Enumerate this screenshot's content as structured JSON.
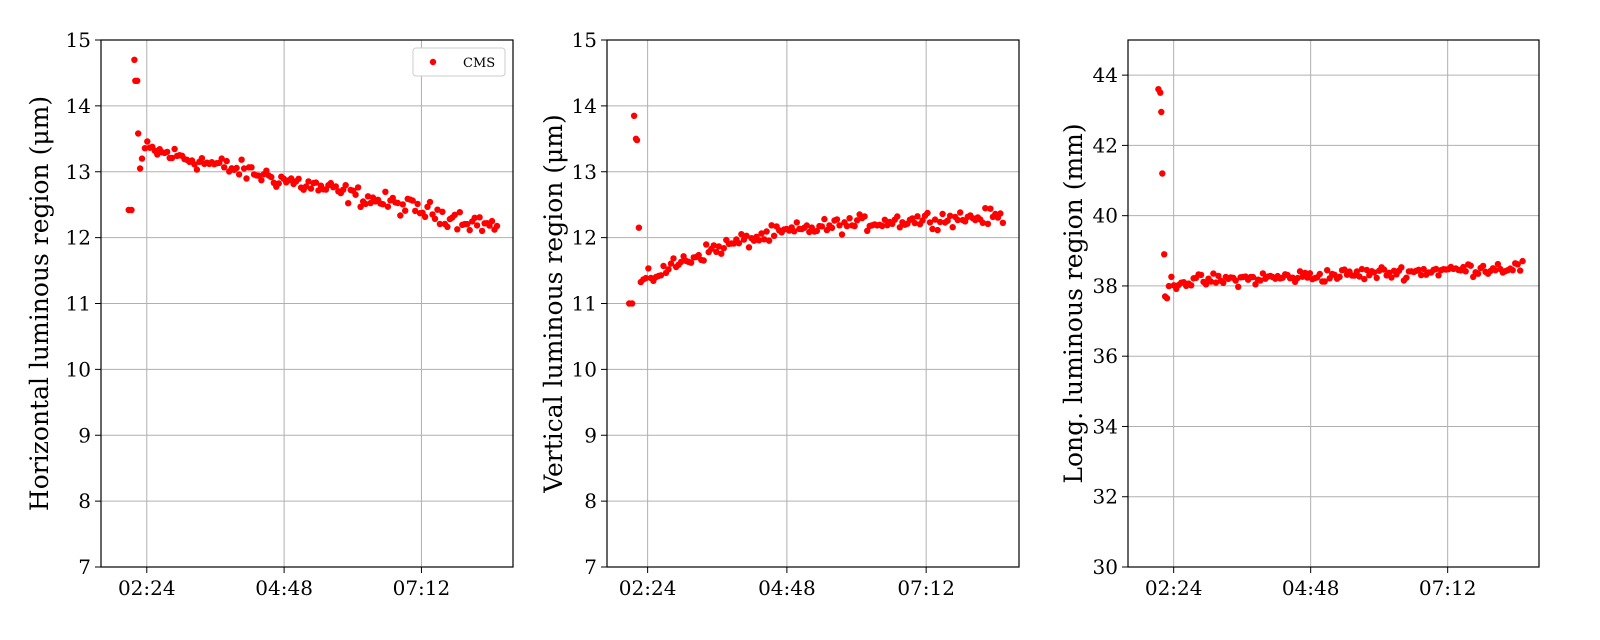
{
  "chart_data": [
    {
      "type": "scatter",
      "title": "",
      "xlabel": "",
      "ylabel": "Horizontal luminous region (μm)",
      "ylim": [
        7,
        15
      ],
      "yticks": [
        7,
        8,
        9,
        10,
        11,
        12,
        13,
        14,
        15
      ],
      "xlim": [
        "01:36",
        "08:48"
      ],
      "xticks": [
        "02:24",
        "04:48",
        "07:12"
      ],
      "grid": true,
      "legend": {
        "show": true,
        "placement": "top-right"
      },
      "series": [
        {
          "name": "CMS",
          "color": "#ff0000",
          "shape": "auto-h"
        }
      ]
    },
    {
      "type": "scatter",
      "title": "",
      "xlabel": "",
      "ylabel": "Vertical luminous region (μm)",
      "ylim": [
        7,
        15
      ],
      "yticks": [
        7,
        8,
        9,
        10,
        11,
        12,
        13,
        14,
        15
      ],
      "xlim": [
        "01:42",
        "08:48"
      ],
      "xticks": [
        "02:24",
        "04:48",
        "07:12"
      ],
      "grid": true,
      "legend": {
        "show": false
      },
      "series": [
        {
          "color": "#ff0000",
          "shape": "auto-v"
        }
      ]
    },
    {
      "type": "scatter",
      "title": "",
      "xlabel": "",
      "ylabel": "Long. luminous region (mm)",
      "ylim": [
        30,
        45
      ],
      "yticks": [
        30,
        32,
        34,
        36,
        38,
        40,
        42,
        44
      ],
      "xlim": [
        "01:36",
        "08:48"
      ],
      "xticks": [
        "02:24",
        "04:48",
        "07:12"
      ],
      "grid": true,
      "legend": {
        "show": false
      },
      "series": [
        {
          "color": "#ff0000",
          "shape": "auto-l"
        }
      ]
    }
  ]
}
